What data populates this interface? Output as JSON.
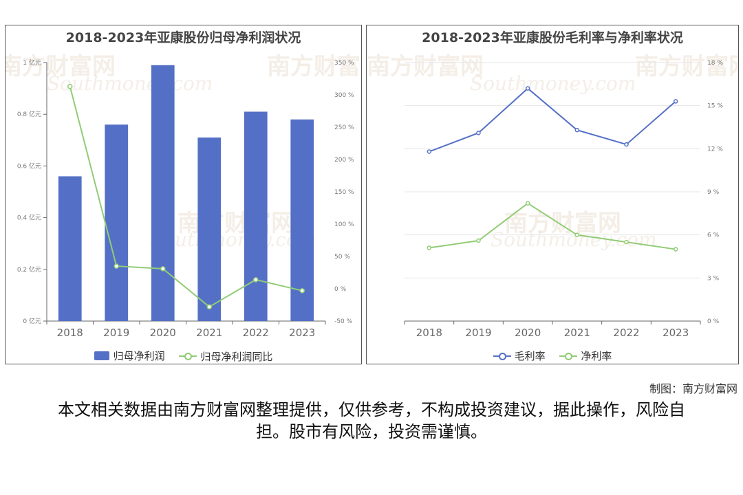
{
  "left_chart": {
    "title": "2018-2023年亚康股份归母净利润状况",
    "legend": {
      "bar_label": "归母净利润",
      "line_label": "归母净利润同比"
    }
  },
  "right_chart": {
    "title": "2018-2023年亚康股份毛利率与净利率状况",
    "legend": {
      "series1_label": "毛利率",
      "series2_label": "净利率"
    }
  },
  "watermark": {
    "cn": "南方财富网",
    "en": "Southmoney.com"
  },
  "credit": "制图：南方财富网",
  "disclaimer": "本文相关数据由南方财富网整理提供，仅供参考，不构成投资建议，据此操作，风险自担。股市有风险，投资需谨慎。",
  "colors": {
    "bar": "#5470c6",
    "line_green": "#91cc75",
    "line_blue": "#5470c6"
  },
  "chart_data": [
    {
      "type": "bar",
      "title": "2018-2023年亚康股份归母净利润状况",
      "categories": [
        "2018",
        "2019",
        "2020",
        "2021",
        "2022",
        "2023"
      ],
      "series": [
        {
          "name": "归母净利润",
          "type": "bar",
          "axis": "left",
          "values": [
            0.56,
            0.76,
            0.99,
            0.71,
            0.81,
            0.78
          ]
        },
        {
          "name": "归母净利润同比",
          "type": "line",
          "axis": "right",
          "values": [
            313,
            35,
            31,
            -28,
            14,
            -3
          ]
        }
      ],
      "y_left": {
        "ticks": [
          "0 亿元",
          "0.2 亿元",
          "0.4 亿元",
          "0.6 亿元",
          "0.8 亿元",
          "1 亿元"
        ],
        "ylim": [
          0,
          1
        ]
      },
      "y_right": {
        "ticks": [
          "-50 %",
          "0 %",
          "50 %",
          "100 %",
          "150 %",
          "200 %",
          "250 %",
          "300 %",
          "350 %"
        ],
        "ylim": [
          -50,
          350
        ]
      },
      "legend_position": "bottom"
    },
    {
      "type": "line",
      "title": "2018-2023年亚康股份毛利率与净利率状况",
      "categories": [
        "2018",
        "2019",
        "2020",
        "2021",
        "2022",
        "2023"
      ],
      "series": [
        {
          "name": "毛利率",
          "values": [
            11.8,
            13.1,
            16.2,
            13.3,
            12.3,
            15.3
          ]
        },
        {
          "name": "净利率",
          "values": [
            5.1,
            5.6,
            8.2,
            6.0,
            5.5,
            5.0
          ]
        }
      ],
      "y_right": {
        "ticks": [
          "0 %",
          "3 %",
          "6 %",
          "9 %",
          "12 %",
          "15 %",
          "18 %"
        ],
        "ylim": [
          0,
          18
        ]
      },
      "legend_position": "bottom"
    }
  ]
}
